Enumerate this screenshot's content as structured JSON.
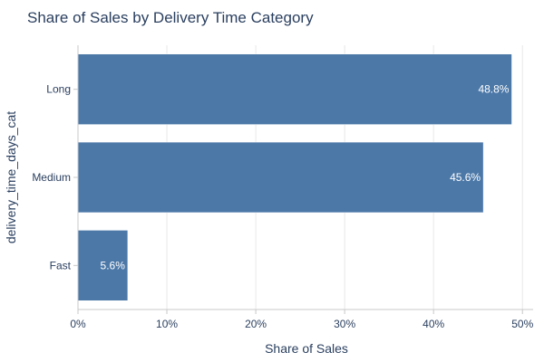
{
  "chart_data": {
    "type": "bar",
    "orientation": "horizontal",
    "title": "Share of Sales by Delivery Time Category",
    "xlabel": "Share of Sales",
    "ylabel": "delivery_time_days_cat",
    "categories": [
      "Long",
      "Medium",
      "Fast"
    ],
    "values": [
      48.8,
      45.6,
      5.6
    ],
    "value_labels": [
      "48.8%",
      "45.6%",
      "5.6%"
    ],
    "x_ticks": [
      0,
      10,
      20,
      30,
      40,
      50
    ],
    "x_tick_labels": [
      "0%",
      "10%",
      "20%",
      "30%",
      "40%",
      "50%"
    ],
    "xlim": [
      0,
      51.2
    ],
    "grid": "vertical",
    "legend": "none",
    "colors": {
      "bar": "#4c78a8",
      "bar_outline": "#ffffff",
      "grid": "#e8e8e8",
      "axis": "#c8c8c8",
      "text": "#2a3f5f"
    }
  }
}
